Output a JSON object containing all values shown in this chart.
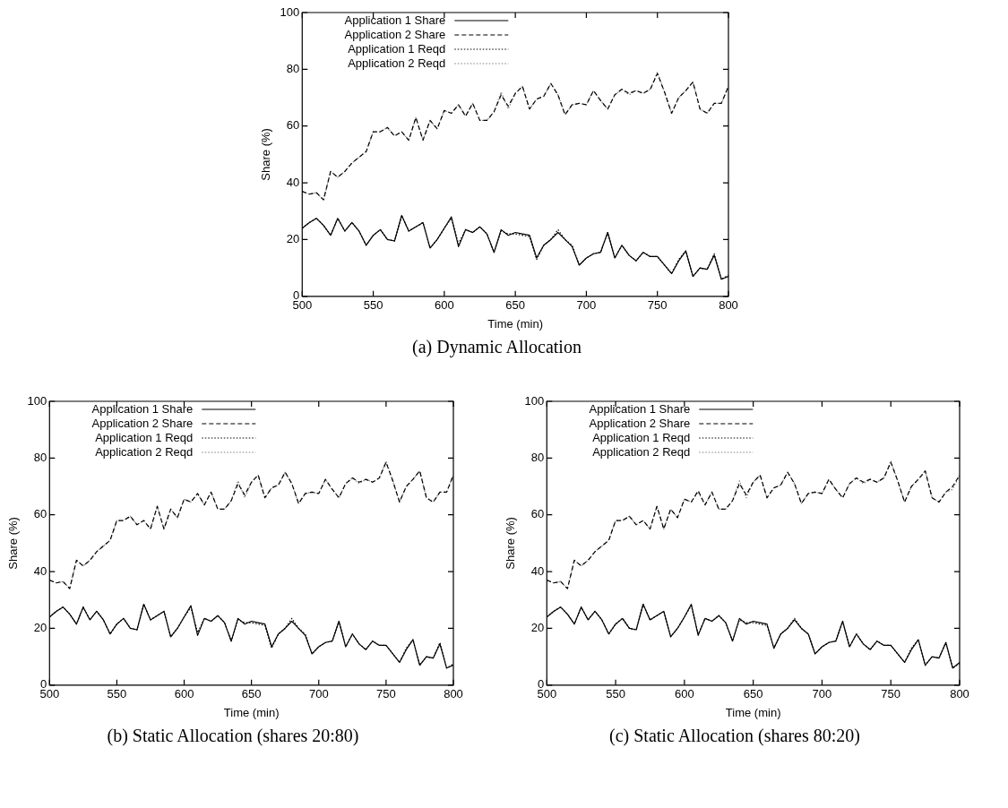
{
  "chart_data": [
    {
      "type": "line",
      "title": "(a) Dynamic Allocation",
      "xlabel": "Time (min)",
      "ylabel": "Share (%)",
      "xlim": [
        500,
        800
      ],
      "xticks": [
        500,
        550,
        600,
        650,
        700,
        750,
        800
      ],
      "ylim": [
        0,
        100
      ],
      "yticks": [
        0,
        20,
        40,
        60,
        80,
        100
      ],
      "legend": "top left",
      "marker": "none",
      "x": [
        500,
        505,
        510,
        515,
        520,
        525,
        530,
        535,
        540,
        545,
        550,
        555,
        560,
        565,
        570,
        575,
        580,
        585,
        590,
        595,
        600,
        605,
        610,
        615,
        620,
        625,
        630,
        635,
        640,
        645,
        650,
        655,
        660,
        665,
        670,
        675,
        680,
        685,
        690,
        695,
        700,
        705,
        710,
        715,
        720,
        725,
        730,
        735,
        740,
        745,
        750,
        755,
        760,
        765,
        770,
        775,
        780,
        785,
        790,
        795,
        800
      ],
      "series": [
        {
          "name": "Application 1 Share",
          "color": "#000000",
          "line_style": "solid",
          "values": [
            24,
            26,
            27.5,
            25,
            21.5,
            27.5,
            23,
            26,
            23,
            18,
            21.5,
            23.5,
            20,
            19.5,
            28.5,
            23,
            24.5,
            26,
            17,
            20,
            24,
            28,
            17.5,
            23.5,
            22.5,
            24.5,
            22,
            15.5,
            23.5,
            21.5,
            22.5,
            22,
            21.5,
            13.5,
            18,
            20,
            22.5,
            20,
            17.5,
            11,
            13.5,
            15,
            15.5,
            22.5,
            13.5,
            18,
            14.5,
            12.5,
            15.5,
            14,
            14,
            11,
            8,
            12.5,
            16,
            7,
            10,
            9.5,
            14.5,
            6,
            7
          ]
        },
        {
          "name": "Application 2 Share",
          "color": "#000000",
          "line_style": "dashed",
          "values": [
            37,
            36,
            36.5,
            34,
            44,
            42,
            44,
            47,
            49,
            51,
            58,
            58,
            59.5,
            56.5,
            58,
            55,
            63,
            55,
            62,
            59,
            65.5,
            64.5,
            67.5,
            63.5,
            68,
            62,
            62,
            65,
            71,
            67,
            71.5,
            74,
            66,
            69.5,
            70.5,
            75,
            71,
            64,
            67.5,
            68,
            67.5,
            72.5,
            69,
            66,
            71,
            73,
            71.5,
            72.5,
            71.5,
            73,
            78.5,
            72,
            64.5,
            70,
            72.5,
            75.5,
            66,
            64.5,
            68,
            68,
            74
          ]
        },
        {
          "name": "Application 1 Reqd",
          "color": "#000000",
          "line_style": "dotted",
          "values": [
            24,
            26,
            27.5,
            25,
            21.5,
            27.5,
            23,
            26,
            23,
            18,
            21.5,
            23.5,
            20,
            19.5,
            28.5,
            23,
            24.5,
            26,
            17,
            20,
            24,
            27.5,
            18.5,
            23.5,
            22.5,
            24.5,
            22,
            15.5,
            23,
            22,
            22,
            21.5,
            21,
            13,
            18,
            20,
            23.5,
            20,
            18,
            11,
            13.5,
            15,
            15.5,
            22.5,
            13.5,
            18,
            14.5,
            12.5,
            15.5,
            14,
            14,
            11,
            8,
            13,
            16,
            7,
            10,
            9.5,
            15,
            6,
            7.5
          ]
        },
        {
          "name": "Application 2 Reqd",
          "color": "#7f7f7f",
          "line_style": "dotted",
          "values": [
            37,
            36,
            36.5,
            34,
            44,
            42,
            44,
            47,
            49,
            51,
            58,
            58,
            59.5,
            56.5,
            58,
            55,
            63,
            55,
            62,
            59,
            65.5,
            64.5,
            67.5,
            63.5,
            68,
            62,
            62,
            65,
            72,
            66,
            71.5,
            74,
            66,
            69.5,
            70.5,
            75,
            71,
            64,
            67.5,
            68,
            67.5,
            72.5,
            69,
            66,
            71,
            73,
            71,
            72.5,
            71.5,
            73,
            79,
            72,
            64.5,
            70,
            72.5,
            75.5,
            66,
            64.5,
            68,
            68,
            74
          ]
        }
      ]
    },
    {
      "type": "line",
      "title": "(b) Static Allocation (shares 20:80)",
      "xlabel": "Time (min)",
      "ylabel": "Share (%)",
      "xlim": [
        500,
        800
      ],
      "xticks": [
        500,
        550,
        600,
        650,
        700,
        750,
        800
      ],
      "ylim": [
        0,
        100
      ],
      "yticks": [
        0,
        20,
        40,
        60,
        80,
        100
      ],
      "legend": "top left",
      "marker": "none",
      "x": [
        500,
        505,
        510,
        515,
        520,
        525,
        530,
        535,
        540,
        545,
        550,
        555,
        560,
        565,
        570,
        575,
        580,
        585,
        590,
        595,
        600,
        605,
        610,
        615,
        620,
        625,
        630,
        635,
        640,
        645,
        650,
        655,
        660,
        665,
        670,
        675,
        680,
        685,
        690,
        695,
        700,
        705,
        710,
        715,
        720,
        725,
        730,
        735,
        740,
        745,
        750,
        755,
        760,
        765,
        770,
        775,
        780,
        785,
        790,
        795,
        800
      ],
      "series": [
        {
          "name": "Application 1 Share",
          "color": "#000000",
          "line_style": "solid",
          "values": [
            24,
            26,
            27.5,
            25,
            21.5,
            27.5,
            23,
            26,
            23,
            18,
            21.5,
            23.5,
            20,
            19.5,
            28.5,
            23,
            24.5,
            26,
            17,
            20,
            24,
            28,
            17.5,
            23.5,
            22.5,
            24.5,
            22,
            15.5,
            23.5,
            21.5,
            22.5,
            22,
            21.5,
            13.5,
            18,
            20,
            22.5,
            20,
            17.5,
            11,
            13.5,
            15,
            15.5,
            22.5,
            13.5,
            18,
            14.5,
            12.5,
            15.5,
            14,
            14,
            11,
            8,
            12.5,
            16,
            7,
            10,
            9.5,
            14.5,
            6,
            7
          ]
        },
        {
          "name": "Application 2 Share",
          "color": "#000000",
          "line_style": "dashed",
          "values": [
            37,
            36,
            36.5,
            34,
            44,
            42,
            44,
            47,
            49,
            51,
            58,
            58,
            59.5,
            56.5,
            58,
            55,
            63,
            55,
            62,
            59,
            65.5,
            64.5,
            67.5,
            63.5,
            68,
            62,
            62,
            65,
            71,
            67,
            71.5,
            74,
            66,
            69.5,
            70.5,
            75,
            71,
            64,
            67.5,
            68,
            67.5,
            72.5,
            69,
            66,
            71,
            73,
            71.5,
            72.5,
            71.5,
            73,
            78.5,
            72,
            64.5,
            70,
            72.5,
            75.5,
            66,
            64.5,
            68,
            68,
            74
          ]
        },
        {
          "name": "Application 1 Reqd",
          "color": "#000000",
          "line_style": "dotted",
          "values": [
            24,
            26,
            27.5,
            25,
            21.5,
            27.5,
            23,
            26,
            23,
            18,
            21.5,
            23.5,
            20,
            19.5,
            28.5,
            23,
            24.5,
            26,
            17,
            20,
            24,
            27.5,
            18.5,
            23.5,
            22.5,
            24.5,
            22,
            15.5,
            23,
            22,
            22,
            21.5,
            21,
            13,
            18,
            20,
            23.5,
            20,
            18,
            11,
            13.5,
            15,
            15.5,
            22.5,
            13.5,
            18,
            14.5,
            12.5,
            15.5,
            14,
            14,
            11,
            8,
            13,
            16,
            7,
            10,
            9.5,
            15,
            6,
            7.5
          ]
        },
        {
          "name": "Application 2 Reqd",
          "color": "#7f7f7f",
          "line_style": "dotted",
          "values": [
            37,
            36,
            36.5,
            34,
            44,
            42,
            44,
            47,
            49,
            51,
            58,
            58,
            59.5,
            56.5,
            58,
            55,
            63,
            55,
            62,
            59,
            65.5,
            64.5,
            67.5,
            63.5,
            68,
            62,
            62,
            65,
            72,
            66,
            71.5,
            74,
            66,
            69.5,
            70.5,
            75,
            71,
            64,
            67.5,
            68,
            67.5,
            72.5,
            69,
            66,
            71,
            73,
            71,
            72.5,
            71.5,
            73,
            79,
            72,
            64.5,
            70,
            72.5,
            75.5,
            66,
            64.5,
            68,
            68,
            74
          ]
        }
      ]
    },
    {
      "type": "line",
      "title": "(c) Static Allocation (shares 80:20)",
      "xlabel": "Time (min)",
      "ylabel": "Share (%)",
      "xlim": [
        500,
        800
      ],
      "xticks": [
        500,
        550,
        600,
        650,
        700,
        750,
        800
      ],
      "ylim": [
        0,
        100
      ],
      "yticks": [
        0,
        20,
        40,
        60,
        80,
        100
      ],
      "legend": "top left",
      "marker": "none",
      "x": [
        500,
        505,
        510,
        515,
        520,
        525,
        530,
        535,
        540,
        545,
        550,
        555,
        560,
        565,
        570,
        575,
        580,
        585,
        590,
        595,
        600,
        605,
        610,
        615,
        620,
        625,
        630,
        635,
        640,
        645,
        650,
        655,
        660,
        665,
        670,
        675,
        680,
        685,
        690,
        695,
        700,
        705,
        710,
        715,
        720,
        725,
        730,
        735,
        740,
        745,
        750,
        755,
        760,
        765,
        770,
        775,
        780,
        785,
        790,
        795,
        800
      ],
      "series": [
        {
          "name": "Application 1 Share",
          "color": "#000000",
          "line_style": "solid",
          "values": [
            24,
            26,
            27.5,
            25,
            21.5,
            27.5,
            23,
            26,
            23,
            18,
            21.5,
            23.5,
            20,
            19.5,
            28.5,
            23,
            24.5,
            26,
            17,
            20,
            24,
            28.5,
            17.5,
            23.5,
            22.5,
            24.5,
            22,
            15.5,
            23.5,
            21.5,
            22.5,
            22,
            21.5,
            13,
            18,
            20,
            23,
            20,
            18,
            11,
            13.5,
            15,
            15.5,
            22.5,
            13.5,
            18,
            14.5,
            12.5,
            15.5,
            14,
            14,
            11,
            8,
            12.5,
            16,
            7,
            10,
            9.5,
            15,
            6,
            8
          ]
        },
        {
          "name": "Application 2 Share",
          "color": "#000000",
          "line_style": "dashed",
          "values": [
            37,
            36,
            36.5,
            34,
            44,
            42,
            44,
            47,
            49,
            51,
            58,
            58,
            59.5,
            56.5,
            58,
            55,
            63,
            55,
            62,
            59,
            65.5,
            64.5,
            68.5,
            63.5,
            68,
            62,
            62,
            65,
            71,
            67,
            71.5,
            74,
            66,
            69.5,
            70.5,
            75,
            71,
            64,
            67.5,
            68,
            67.5,
            72.5,
            69,
            66,
            71,
            73,
            71.5,
            72.5,
            71.5,
            73,
            78.5,
            72,
            64.5,
            70,
            72.5,
            75.5,
            66,
            64.5,
            68,
            70,
            74
          ]
        },
        {
          "name": "Application 1 Reqd",
          "color": "#000000",
          "line_style": "dotted",
          "values": [
            24,
            26,
            27.5,
            25,
            21.5,
            27.5,
            23,
            26,
            23,
            18,
            21.5,
            23.5,
            20,
            19.5,
            28.5,
            23,
            24.5,
            26,
            17,
            20,
            24,
            28,
            18,
            23.5,
            22.5,
            24.5,
            22,
            15.5,
            23,
            22,
            22,
            21.5,
            21,
            13,
            18,
            20,
            23.5,
            20,
            18,
            11,
            13.5,
            15,
            15.5,
            22.5,
            13.5,
            18,
            14.5,
            12.5,
            15.5,
            14,
            14,
            11,
            8,
            13,
            16,
            7,
            10,
            9.5,
            15,
            6,
            7.5
          ]
        },
        {
          "name": "Application 2 Reqd",
          "color": "#7f7f7f",
          "line_style": "dotted",
          "values": [
            37,
            36,
            36.5,
            34,
            44,
            42,
            44,
            47,
            49,
            51,
            58,
            58,
            59.5,
            56.5,
            58,
            55,
            63,
            55,
            62,
            59,
            65.5,
            64.5,
            68,
            63.5,
            68,
            62,
            62,
            65,
            72,
            66,
            71.5,
            74,
            66,
            69.5,
            70.5,
            75,
            71,
            64,
            67.5,
            68,
            67.5,
            72.5,
            69,
            66,
            71,
            73,
            71,
            72.5,
            71.5,
            73,
            79,
            72,
            64.5,
            70,
            72.5,
            75.5,
            66,
            64.5,
            68,
            69,
            74
          ]
        }
      ]
    }
  ]
}
